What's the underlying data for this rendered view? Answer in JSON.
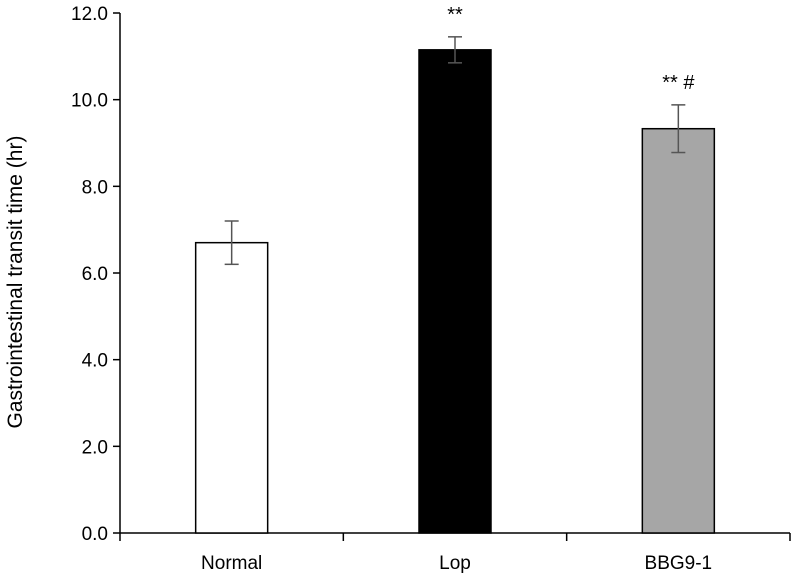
{
  "chart_data": {
    "type": "bar",
    "title": "",
    "xlabel": "",
    "ylabel": "Gastrointestinal  transit time (hr)",
    "ylim": [
      0,
      12
    ],
    "yticks": [
      "0.0",
      "2.0",
      "4.0",
      "6.0",
      "8.0",
      "10.0",
      "12.0"
    ],
    "ytick_values": [
      0,
      2,
      4,
      6,
      8,
      10,
      12
    ],
    "categories": [
      "Normal",
      "Lop",
      "BBG9-1"
    ],
    "values": [
      6.7,
      11.15,
      9.33
    ],
    "errors": [
      0.5,
      0.3,
      0.55
    ],
    "annotations": [
      "",
      "**",
      "** #"
    ],
    "colors": [
      "#ffffff",
      "#000000",
      "#a6a6a6"
    ],
    "grid": false,
    "legend": "none"
  }
}
